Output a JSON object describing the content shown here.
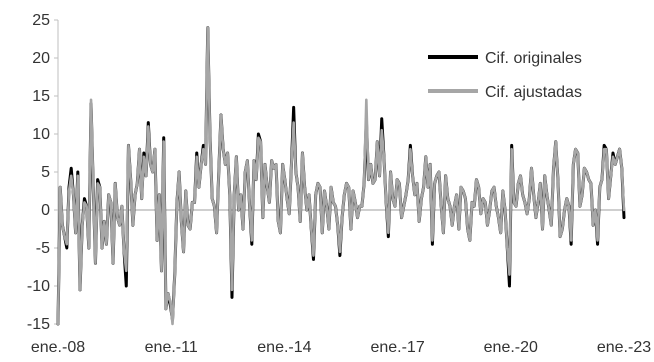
{
  "chart_data": {
    "type": "line",
    "title": "",
    "xlabel": "",
    "ylabel": "",
    "ylim": [
      -15,
      25
    ],
    "yticks": [
      -15,
      -10,
      -5,
      0,
      5,
      10,
      15,
      20,
      25
    ],
    "x_start": "2008-01",
    "x_end": "2023-01",
    "xtick_labels": [
      "ene.-08",
      "ene.-11",
      "ene.-14",
      "ene.-17",
      "ene.-20",
      "ene.-23"
    ],
    "grid": false,
    "zero_line": true,
    "legend_position": "top-right",
    "series": [
      {
        "name": "Cif. originales",
        "color": "#000000",
        "values": [
          -15,
          3.0,
          -2.0,
          -3.5,
          -5.0,
          3.0,
          5.5,
          2.0,
          -3.0,
          5.0,
          -10.5,
          -2.0,
          1.5,
          0.5,
          -5.0,
          14.0,
          3.0,
          -7.0,
          4.0,
          3.0,
          -5.0,
          -1.5,
          -4.5,
          2.0,
          1.0,
          -7.0,
          3.5,
          -1.0,
          -2.0,
          0.5,
          -5.5,
          -10.0,
          8.5,
          4.0,
          -2.0,
          2.0,
          3.5,
          8.0,
          1.5,
          7.5,
          4.5,
          11.5,
          6.0,
          5.0,
          8.0,
          -4.0,
          2.0,
          -8.0,
          9.5,
          -13.0,
          -11.0,
          -12.5,
          -14.5,
          -8.5,
          1.0,
          5.0,
          -1.5,
          -5.5,
          2.5,
          -2.0,
          -2.5,
          1.0,
          1.0,
          7.5,
          3.0,
          6.0,
          8.5,
          6.0,
          24.0,
          10.0,
          1.5,
          0.5,
          -3.0,
          5.0,
          12.5,
          8.0,
          6.0,
          7.5,
          2.0,
          -11.5,
          2.0,
          7.0,
          0.0,
          2.0,
          -2.5,
          5.0,
          6.5,
          0.5,
          -4.5,
          6.5,
          4.0,
          10.0,
          9.0,
          -1.0,
          6.0,
          3.0,
          1.0,
          6.5,
          5.5,
          6.0,
          -1.5,
          -3.0,
          6.0,
          4.0,
          1.5,
          -0.5,
          6.0,
          13.5,
          5.0,
          3.0,
          -1.5,
          7.5,
          3.0,
          0.0,
          2.0,
          -2.5,
          -6.5,
          2.0,
          3.5,
          3.0,
          -3.0,
          2.5,
          0.5,
          -2.5,
          3.0,
          1.0,
          0.5,
          -2.0,
          -6.0,
          -1.0,
          2.0,
          3.5,
          3.0,
          -2.5,
          2.5,
          1.0,
          -1.0,
          0.5,
          0.5,
          3.5,
          12.0,
          4.0,
          6.0,
          3.5,
          4.0,
          9.0,
          4.5,
          12.0,
          7.0,
          1.0,
          -3.5,
          5.0,
          1.5,
          0.5,
          4.0,
          3.5,
          -1.0,
          0.5,
          2.0,
          4.0,
          8.5,
          4.5,
          2.0,
          3.5,
          -1.5,
          1.5,
          3.0,
          7.0,
          3.0,
          6.0,
          -4.5,
          3.5,
          4.5,
          5.0,
          0.5,
          -3.0,
          4.5,
          1.5,
          0.5,
          -2.0,
          0.5,
          2.0,
          -2.5,
          3.0,
          2.5,
          1.5,
          -2.5,
          -4.0,
          1.0,
          0.5,
          4.0,
          3.0,
          -0.5,
          1.5,
          1.0,
          -2.0,
          0.0,
          2.5,
          3.0,
          0.5,
          -1.0,
          -3.0,
          2.5,
          0.0,
          -5.0,
          -10.0,
          8.5,
          1.0,
          0.5,
          3.5,
          4.5,
          2.0,
          1.0,
          -0.5,
          1.5,
          5.5,
          2.0,
          -1.0,
          1.0,
          3.5,
          -2.5,
          4.5,
          2.0,
          0.0,
          -2.0,
          5.5,
          9.0,
          4.0,
          -3.5,
          -2.5,
          0.0,
          1.5,
          0.5,
          -4.5,
          6.0,
          8.0,
          7.5,
          0.5,
          2.0,
          5.5,
          5.0,
          4.0,
          3.5,
          -2.0,
          0.0,
          -4.5,
          3.0,
          4.0,
          8.5,
          8.0,
          1.5,
          4.5,
          7.5,
          6.0,
          7.0,
          8.0,
          5.5,
          -1.0
        ]
      },
      {
        "name": "Cif. ajustadas",
        "color": "#a6a6a6",
        "values": [
          -15,
          3.0,
          -2.0,
          -3.5,
          -4.5,
          2.5,
          4.5,
          2.0,
          -3.0,
          4.5,
          -10.5,
          -2.0,
          1.0,
          0.5,
          -5.0,
          14.5,
          3.0,
          -7.0,
          3.5,
          3.0,
          -5.0,
          -1.5,
          -4.5,
          2.0,
          1.0,
          -7.0,
          3.5,
          -1.0,
          -2.0,
          0.5,
          -5.5,
          -8.0,
          8.5,
          4.0,
          -2.0,
          2.0,
          3.5,
          8.0,
          1.5,
          7.0,
          4.5,
          11.0,
          6.0,
          5.0,
          8.0,
          -4.0,
          2.0,
          -8.0,
          9.0,
          -13.0,
          -11.0,
          -12.0,
          -15.0,
          -8.5,
          1.0,
          5.0,
          -1.5,
          -5.5,
          2.5,
          -2.0,
          -2.5,
          1.0,
          1.0,
          7.0,
          3.0,
          6.0,
          8.0,
          6.0,
          24.0,
          10.0,
          1.5,
          0.5,
          -3.0,
          5.0,
          12.5,
          8.0,
          6.0,
          7.5,
          2.0,
          -10.5,
          2.0,
          7.0,
          0.0,
          2.0,
          -2.5,
          5.0,
          6.5,
          0.5,
          -4.0,
          6.5,
          4.0,
          9.5,
          9.0,
          -1.0,
          6.0,
          3.0,
          1.0,
          6.5,
          5.5,
          6.0,
          -1.5,
          -3.0,
          6.0,
          4.0,
          1.5,
          -0.5,
          6.0,
          11.5,
          5.0,
          3.0,
          -1.5,
          7.5,
          3.0,
          0.0,
          2.0,
          -2.5,
          -6.0,
          2.0,
          3.5,
          3.0,
          -3.0,
          2.5,
          0.5,
          -2.5,
          3.0,
          1.0,
          0.5,
          -2.0,
          -5.5,
          -1.0,
          2.0,
          3.5,
          3.0,
          -2.5,
          2.5,
          1.0,
          -1.0,
          0.5,
          0.5,
          3.5,
          14.5,
          4.0,
          6.0,
          3.5,
          4.0,
          9.0,
          4.5,
          10.5,
          7.0,
          1.0,
          -3.0,
          5.0,
          1.5,
          0.5,
          4.0,
          3.5,
          -1.0,
          0.5,
          2.0,
          4.0,
          8.0,
          4.5,
          2.0,
          3.5,
          -1.5,
          1.5,
          3.0,
          7.0,
          3.0,
          6.0,
          -4.0,
          3.5,
          4.5,
          5.0,
          0.5,
          -3.0,
          4.5,
          1.5,
          0.5,
          -2.0,
          0.5,
          2.0,
          -2.5,
          3.0,
          2.5,
          1.5,
          -2.5,
          -4.0,
          1.0,
          0.5,
          4.0,
          3.0,
          -0.5,
          1.5,
          1.0,
          -2.0,
          0.0,
          2.5,
          3.0,
          0.5,
          -1.0,
          -3.0,
          2.5,
          0.0,
          -5.0,
          -8.5,
          8.0,
          1.0,
          0.5,
          3.5,
          4.5,
          2.0,
          1.0,
          -0.5,
          1.5,
          5.5,
          2.0,
          -1.0,
          1.0,
          3.5,
          -2.5,
          4.5,
          2.0,
          0.0,
          -2.0,
          5.5,
          9.0,
          4.0,
          -3.5,
          -2.5,
          0.0,
          1.5,
          0.5,
          -4.0,
          6.0,
          8.0,
          7.5,
          0.5,
          2.0,
          5.5,
          5.0,
          4.0,
          3.5,
          -2.0,
          0.0,
          -4.0,
          3.0,
          4.0,
          8.0,
          8.0,
          1.5,
          4.5,
          7.0,
          6.0,
          7.0,
          8.0,
          5.5,
          0.0
        ]
      }
    ]
  }
}
